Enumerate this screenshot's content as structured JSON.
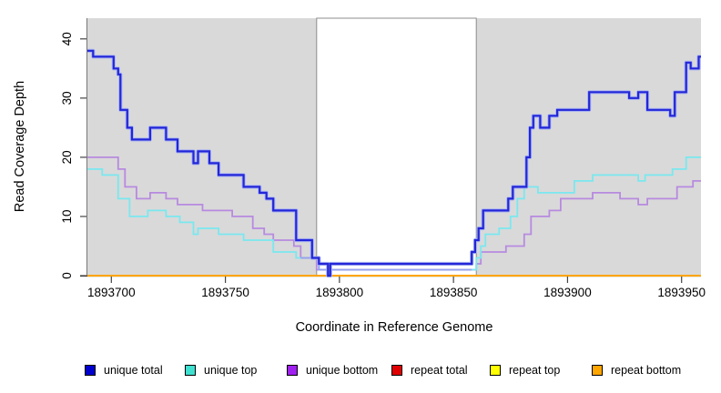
{
  "figure": {
    "xlabel": "Coordinate in Reference Genome",
    "ylabel": "Read Coverage Depth",
    "plot_background": "#d9d9d9",
    "axis_color": "#444444",
    "tick_text_color": "#000000"
  },
  "chart_data": {
    "type": "line",
    "subtype": "step",
    "title": "",
    "xlabel": "Coordinate in Reference Genome",
    "ylabel": "Read Coverage Depth",
    "xlim": [
      1893689.5,
      1893958.5
    ],
    "ylim": [
      0,
      43.5
    ],
    "x_ticks": [
      1893700,
      1893750,
      1893800,
      1893850,
      1893900,
      1893950
    ],
    "y_ticks": [
      0,
      10,
      20,
      30,
      40
    ],
    "grid": false,
    "legend_position": "bottom",
    "plot_background": "#d9d9d9",
    "highlight_region": {
      "x0": 1893790,
      "x1": 1893860,
      "fill": "#ffffff",
      "border": "#8c8c8c",
      "note": "white band where repeat coverage region is absent"
    },
    "series": [
      {
        "name": "unique total",
        "legend_color": "#0000cd",
        "line_color": "#2326d8",
        "halo_color": "#a9b4f2",
        "width": 2.2,
        "steps": [
          [
            1893689.5,
            38
          ],
          [
            1893692,
            37
          ],
          [
            1893701,
            35
          ],
          [
            1893703,
            34
          ],
          [
            1893704,
            28
          ],
          [
            1893707,
            25
          ],
          [
            1893709,
            23
          ],
          [
            1893717,
            25
          ],
          [
            1893724,
            23
          ],
          [
            1893729,
            21
          ],
          [
            1893736,
            19
          ],
          [
            1893738,
            21
          ],
          [
            1893743,
            19
          ],
          [
            1893747,
            17
          ],
          [
            1893758,
            15
          ],
          [
            1893765,
            14
          ],
          [
            1893768,
            13
          ],
          [
            1893771,
            11
          ],
          [
            1893781,
            6
          ],
          [
            1893788,
            3
          ],
          [
            1893791,
            2
          ],
          [
            1893795,
            0
          ],
          [
            1893796,
            2
          ],
          [
            1893858,
            4
          ],
          [
            1893859.5,
            6
          ],
          [
            1893861,
            8
          ],
          [
            1893863,
            11
          ],
          [
            1893874,
            13
          ],
          [
            1893876,
            15
          ],
          [
            1893882,
            20
          ],
          [
            1893883.5,
            25
          ],
          [
            1893885,
            27
          ],
          [
            1893888,
            25
          ],
          [
            1893892,
            27
          ],
          [
            1893895.5,
            28
          ],
          [
            1893909.5,
            31
          ],
          [
            1893927,
            30
          ],
          [
            1893931,
            31
          ],
          [
            1893935,
            28
          ],
          [
            1893945,
            27
          ],
          [
            1893947,
            31
          ],
          [
            1893952,
            36
          ],
          [
            1893954,
            35
          ],
          [
            1893957.5,
            37
          ]
        ]
      },
      {
        "name": "unique top",
        "legend_color": "#40e0d0",
        "line_color": "#79e8ef",
        "width": 1.8,
        "steps": [
          [
            1893689.5,
            18
          ],
          [
            1893696,
            17
          ],
          [
            1893703,
            13
          ],
          [
            1893708,
            10
          ],
          [
            1893716,
            11
          ],
          [
            1893724,
            10
          ],
          [
            1893730,
            9
          ],
          [
            1893736,
            7
          ],
          [
            1893738,
            8
          ],
          [
            1893747,
            7
          ],
          [
            1893758,
            6
          ],
          [
            1893771,
            4
          ],
          [
            1893781,
            3
          ],
          [
            1893791,
            1
          ],
          [
            1893860,
            3
          ],
          [
            1893862,
            5
          ],
          [
            1893864,
            7
          ],
          [
            1893870,
            8
          ],
          [
            1893875,
            10
          ],
          [
            1893878,
            13
          ],
          [
            1893881,
            15
          ],
          [
            1893887,
            14
          ],
          [
            1893903,
            16
          ],
          [
            1893911,
            17
          ],
          [
            1893931,
            16
          ],
          [
            1893934,
            17
          ],
          [
            1893946,
            18
          ],
          [
            1893952,
            20
          ]
        ]
      },
      {
        "name": "unique bottom",
        "legend_color": "#a020f0",
        "line_color": "#b78ae0",
        "width": 1.8,
        "steps": [
          [
            1893689.5,
            20
          ],
          [
            1893703,
            18
          ],
          [
            1893706,
            15
          ],
          [
            1893711,
            13
          ],
          [
            1893717,
            14
          ],
          [
            1893724,
            13
          ],
          [
            1893729,
            12
          ],
          [
            1893740,
            11
          ],
          [
            1893753,
            10
          ],
          [
            1893762,
            8
          ],
          [
            1893767,
            7
          ],
          [
            1893771,
            6
          ],
          [
            1893780,
            5
          ],
          [
            1893783,
            3
          ],
          [
            1893790,
            1
          ],
          [
            1893860,
            2
          ],
          [
            1893862,
            4
          ],
          [
            1893873,
            5
          ],
          [
            1893881,
            7
          ],
          [
            1893884,
            10
          ],
          [
            1893892,
            11
          ],
          [
            1893897,
            13
          ],
          [
            1893911,
            14
          ],
          [
            1893923,
            13
          ],
          [
            1893931,
            12
          ],
          [
            1893935,
            13
          ],
          [
            1893948,
            15
          ],
          [
            1893955,
            16
          ]
        ]
      },
      {
        "name": "repeat total",
        "legend_color": "#e00000",
        "line_color": "#e00000",
        "width": 1.8,
        "steps": [
          [
            1893689.5,
            0
          ]
        ]
      },
      {
        "name": "repeat top",
        "legend_color": "#ffff00",
        "line_color": "#ffff00",
        "width": 1.8,
        "steps": [
          [
            1893689.5,
            0
          ]
        ]
      },
      {
        "name": "repeat bottom",
        "legend_color": "#ffa500",
        "line_color": "#ffa500",
        "width": 2,
        "steps": [
          [
            1893689.5,
            0
          ]
        ]
      }
    ],
    "overlap_segment": {
      "note": "unique top and unique bottom coincide; rendered pale periwinkle",
      "color": "#95a2ec",
      "width": 2,
      "steps": [
        [
          1893783,
          3
        ],
        [
          1893791,
          1
        ]
      ],
      "end_x": 1893858
    }
  },
  "legend": {
    "items": [
      {
        "label": "unique total",
        "color": "#0000cd"
      },
      {
        "label": "unique top",
        "color": "#40e0d0"
      },
      {
        "label": "unique bottom",
        "color": "#a020f0"
      },
      {
        "label": "repeat total",
        "color": "#e00000"
      },
      {
        "label": "repeat top",
        "color": "#ffff00"
      },
      {
        "label": "repeat bottom",
        "color": "#ffa500"
      }
    ]
  }
}
